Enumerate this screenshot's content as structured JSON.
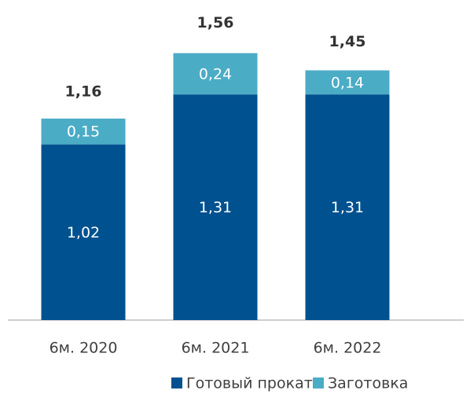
{
  "chart_data": {
    "type": "stacked_bar",
    "categories": [
      "6м. 2020",
      "6м. 2021",
      "6м. 2022"
    ],
    "series": [
      {
        "name": "Готовый прокат",
        "color": "#00518f",
        "values": [
          1.02,
          1.31,
          1.31
        ],
        "value_labels": [
          "1,02",
          "1,31",
          "1,31"
        ]
      },
      {
        "name": "Заготовка",
        "color": "#4bacc6",
        "values": [
          0.15,
          0.24,
          0.14
        ],
        "value_labels": [
          "0,15",
          "0,24",
          "0,14"
        ]
      }
    ],
    "totals": [
      1.16,
      1.56,
      1.45
    ],
    "total_labels": [
      "1,16",
      "1,56",
      "1,45"
    ],
    "legend": "bottom"
  }
}
